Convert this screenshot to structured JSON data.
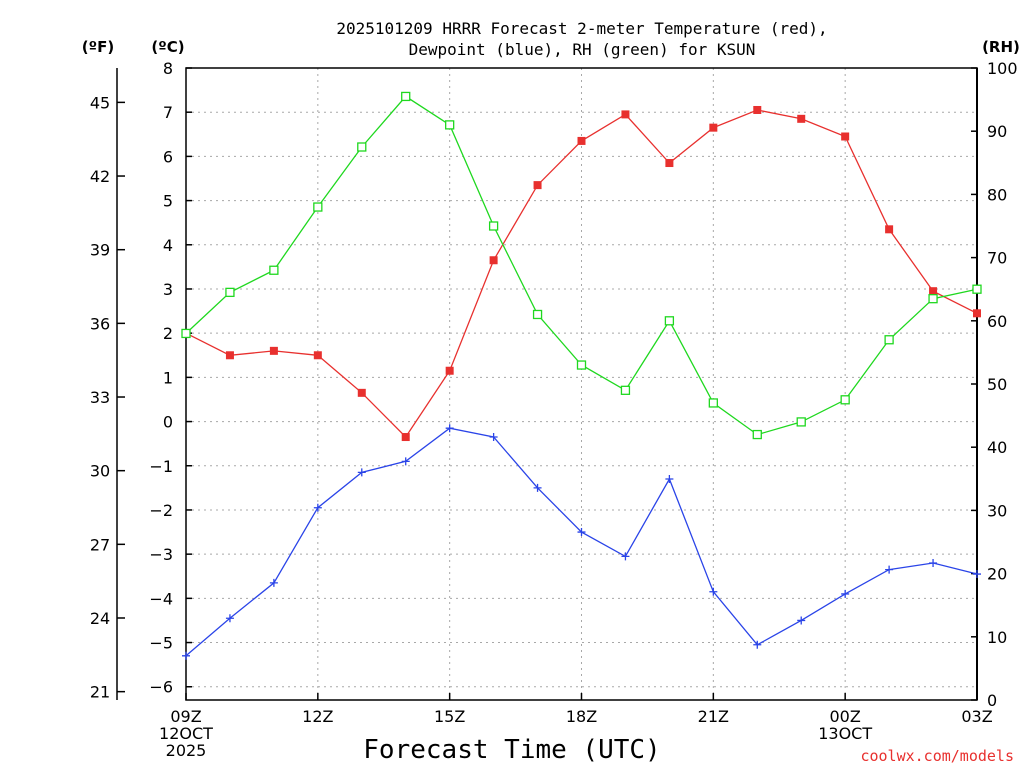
{
  "chart_data": {
    "type": "line",
    "title_lines": [
      "2025101209 HRRR Forecast 2-meter Temperature (red),",
      "Dewpoint (blue), RH (green) for KSUN"
    ],
    "xlabel": "Forecast Time (UTC)",
    "credit": "coolwx.com/models",
    "x_hours": [
      0,
      1,
      2,
      3,
      4,
      5,
      6,
      7,
      8,
      9,
      10,
      11,
      12,
      13,
      14,
      15,
      16,
      17,
      18
    ],
    "x_ticks": [
      {
        "hour": 0,
        "lines": [
          "09Z",
          "12OCT",
          "2025"
        ]
      },
      {
        "hour": 3,
        "lines": [
          "12Z"
        ]
      },
      {
        "hour": 6,
        "lines": [
          "15Z"
        ]
      },
      {
        "hour": 9,
        "lines": [
          "18Z"
        ]
      },
      {
        "hour": 12,
        "lines": [
          "21Z"
        ]
      },
      {
        "hour": 15,
        "lines": [
          "00Z",
          "13OCT"
        ]
      },
      {
        "hour": 18,
        "lines": [
          "03Z"
        ]
      }
    ],
    "xlim": [
      0,
      18
    ],
    "ylim_celsius": [
      -6.3,
      8
    ],
    "ylim_rh": [
      0,
      100
    ],
    "y_left_celsius": {
      "unit_label": "(ºC)",
      "ticks": [
        -6,
        -5,
        -4,
        -3,
        -2,
        -1,
        0,
        1,
        2,
        3,
        4,
        5,
        6,
        7,
        8
      ]
    },
    "y_left_fahrenheit": {
      "unit_label": "(ºF)",
      "ticks": [
        21,
        24,
        27,
        30,
        33,
        36,
        39,
        42,
        45
      ]
    },
    "y_right_rh": {
      "unit_label": "(RH)",
      "ticks": [
        0,
        10,
        20,
        30,
        40,
        50,
        60,
        70,
        80,
        90,
        100
      ]
    },
    "series": [
      {
        "name": "2-meter Temperature",
        "axis": "celsius",
        "color": "#e8302e",
        "marker": "filled-square",
        "values": [
          2.0,
          1.5,
          1.6,
          1.5,
          0.65,
          -0.35,
          1.15,
          3.65,
          5.35,
          6.35,
          6.95,
          5.85,
          6.65,
          7.05,
          6.85,
          6.45,
          4.35,
          2.95,
          2.45
        ]
      },
      {
        "name": "Dewpoint",
        "axis": "celsius",
        "color": "#2a44e8",
        "marker": "plus",
        "values": [
          -5.3,
          -4.45,
          -3.65,
          -1.95,
          -1.15,
          -0.9,
          -0.15,
          -0.35,
          -1.5,
          -2.5,
          -3.05,
          -1.3,
          -3.85,
          -5.05,
          -4.5,
          -3.9,
          -3.35,
          -3.2,
          -3.45
        ]
      },
      {
        "name": "RH",
        "axis": "rh",
        "color": "#1fd81f",
        "marker": "open-square",
        "values": [
          58,
          64.5,
          68,
          78,
          87.5,
          95.5,
          91,
          75,
          61,
          53,
          49,
          60,
          47,
          42,
          44,
          47.5,
          57,
          63.5,
          65
        ]
      }
    ]
  }
}
